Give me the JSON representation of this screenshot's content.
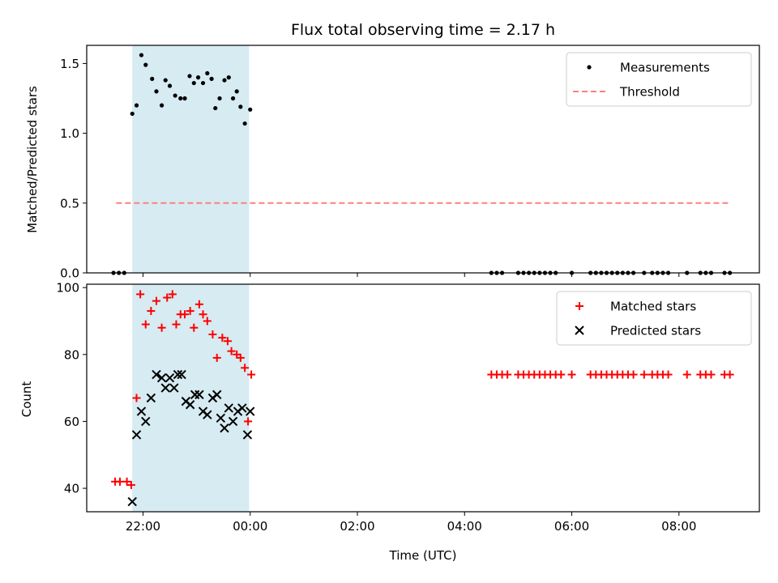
{
  "figure": {
    "title": "Flux total observing time = 2.17 h",
    "xlabel": "Time (UTC)",
    "x_ticks": [
      "22:00",
      "00:00",
      "02:00",
      "04:00",
      "06:00",
      "08:00"
    ],
    "x_tick_hours": [
      22,
      24,
      26,
      28,
      30,
      32
    ],
    "x_range_hours": [
      20.95,
      33.5
    ],
    "shaded_interval_hours": [
      21.8,
      23.98
    ],
    "shade_color": "#add8e6"
  },
  "chart_data": [
    {
      "type": "scatter",
      "ylabel": "Matched/Predicted stars",
      "ylim": [
        0,
        1.63
      ],
      "y_ticks": [
        0.0,
        0.5,
        1.0,
        1.5
      ],
      "legend": "top-right",
      "series": [
        {
          "name": "Measurements",
          "marker": "dot",
          "color": "#000000",
          "x": [
            21.45,
            21.55,
            21.65,
            21.8,
            21.88,
            21.97,
            22.05,
            22.17,
            22.25,
            22.35,
            22.42,
            22.5,
            22.6,
            22.7,
            22.78,
            22.87,
            22.95,
            23.03,
            23.12,
            23.2,
            23.28,
            23.35,
            23.43,
            23.52,
            23.6,
            23.68,
            23.75,
            23.82,
            23.9,
            24.0,
            28.5,
            28.6,
            28.7,
            29.0,
            29.1,
            29.2,
            29.3,
            29.4,
            29.5,
            29.6,
            29.7,
            30.0,
            30.35,
            30.45,
            30.55,
            30.65,
            30.75,
            30.85,
            30.95,
            31.05,
            31.15,
            31.35,
            31.5,
            31.6,
            31.7,
            31.8,
            32.15,
            32.4,
            32.5,
            32.6,
            32.85,
            32.95
          ],
          "y": [
            0,
            0,
            0,
            1.14,
            1.2,
            1.56,
            1.49,
            1.39,
            1.3,
            1.2,
            1.38,
            1.34,
            1.27,
            1.25,
            1.25,
            1.41,
            1.36,
            1.4,
            1.36,
            1.43,
            1.39,
            1.18,
            1.25,
            1.38,
            1.4,
            1.25,
            1.3,
            1.19,
            1.07,
            1.17,
            0,
            0,
            0,
            0,
            0,
            0,
            0,
            0,
            0,
            0,
            0,
            0,
            0,
            0,
            0,
            0,
            0,
            0,
            0,
            0,
            0,
            0,
            0,
            0,
            0,
            0,
            0,
            0,
            0,
            0,
            0,
            0
          ]
        },
        {
          "name": "Threshold",
          "marker": "dashed-line",
          "color": "#ff7f7f",
          "x": [
            21.5,
            32.95
          ],
          "y": [
            0.5,
            0.5
          ]
        }
      ]
    },
    {
      "type": "scatter",
      "ylabel": "Count",
      "ylim": [
        33,
        101
      ],
      "y_ticks": [
        40,
        60,
        80,
        100
      ],
      "legend": "top-right",
      "series": [
        {
          "name": "Matched stars",
          "marker": "plus",
          "color": "#ff0000",
          "x": [
            21.48,
            21.57,
            21.7,
            21.78,
            21.88,
            21.95,
            22.05,
            22.15,
            22.25,
            22.35,
            22.45,
            22.55,
            22.62,
            22.7,
            22.78,
            22.88,
            22.95,
            23.05,
            23.12,
            23.2,
            23.3,
            23.38,
            23.48,
            23.58,
            23.65,
            23.75,
            23.82,
            23.9,
            23.96,
            24.02,
            28.5,
            28.6,
            28.7,
            28.8,
            29.0,
            29.1,
            29.2,
            29.3,
            29.4,
            29.5,
            29.6,
            29.7,
            29.8,
            30.0,
            30.35,
            30.45,
            30.55,
            30.65,
            30.75,
            30.85,
            30.95,
            31.05,
            31.15,
            31.35,
            31.5,
            31.6,
            31.7,
            31.8,
            32.15,
            32.4,
            32.5,
            32.6,
            32.85,
            32.95
          ],
          "y": [
            42,
            42,
            42,
            41,
            67,
            98,
            89,
            93,
            96,
            88,
            97,
            98,
            89,
            92,
            92,
            93,
            88,
            95,
            92,
            90,
            86,
            79,
            85,
            84,
            81,
            80,
            79,
            76,
            60,
            74,
            74,
            74,
            74,
            74,
            74,
            74,
            74,
            74,
            74,
            74,
            74,
            74,
            74,
            74,
            74,
            74,
            74,
            74,
            74,
            74,
            74,
            74,
            74,
            74,
            74,
            74,
            74,
            74,
            74,
            74,
            74,
            74,
            74,
            74
          ]
        },
        {
          "name": "Predicted stars",
          "marker": "x",
          "color": "#000000",
          "x": [
            21.8,
            21.88,
            21.97,
            22.05,
            22.15,
            22.25,
            22.35,
            22.42,
            22.5,
            22.58,
            22.65,
            22.72,
            22.8,
            22.88,
            22.97,
            23.05,
            23.12,
            23.2,
            23.3,
            23.38,
            23.45,
            23.52,
            23.6,
            23.68,
            23.77,
            23.85,
            23.95,
            24.0
          ],
          "y": [
            36,
            56,
            63,
            60,
            67,
            74,
            73,
            70,
            73,
            70,
            74,
            74,
            66,
            65,
            68,
            68,
            63,
            62,
            67,
            68,
            61,
            58,
            64,
            60,
            63,
            64,
            56,
            63
          ]
        }
      ]
    }
  ]
}
